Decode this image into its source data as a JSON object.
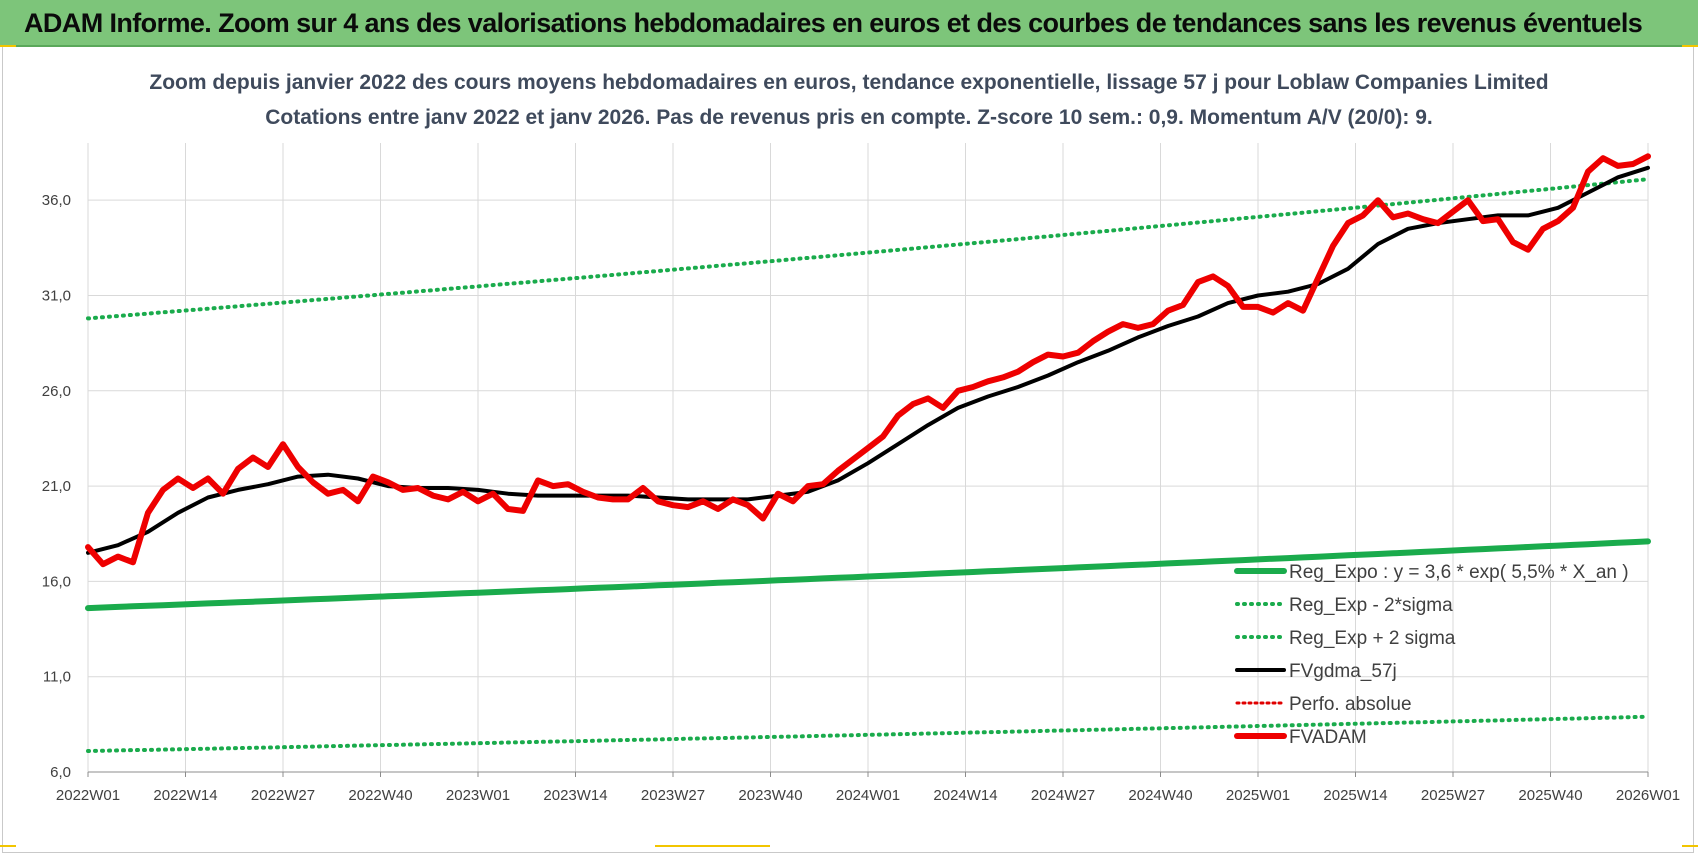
{
  "header": {
    "banner_title": "ADAM Informe. Zoom sur 4 ans des valorisations hebdomadaires en euros et des courbes de tendances sans les revenus éventuels"
  },
  "colors": {
    "banner_bg": "#7dc57a",
    "reg_expo": "#1aab4c",
    "sigma": "#1aab4c",
    "fvgdma": "#000000",
    "perfo": "#e00000",
    "fvadam": "#ee0000",
    "grid": "#d9d9d9",
    "subtitle": "#3f4a5c"
  },
  "chart_data": {
    "type": "line",
    "title_lines": [
      "Zoom depuis janvier 2022 des cours moyens hebdomadaires en euros, tendance exponentielle, lissage 57 j pour Loblaw Companies Limited",
      "Cotations entre janv 2022 et janv 2026. Pas de revenus pris en compte. Z-score 10 sem.: 0,9. Momentum A/V (20/0): 9."
    ],
    "xlabel": "",
    "ylabel": "",
    "ylim": [
      6,
      39
    ],
    "y_ticks": [
      "6,0",
      "11,0",
      "16,0",
      "21,0",
      "26,0",
      "31,0",
      "36,0"
    ],
    "y_tick_values": [
      6,
      11,
      16,
      21,
      26,
      31,
      36
    ],
    "x_range": [
      0,
      208
    ],
    "x_ticks": [
      "2022W01",
      "2022W14",
      "2022W27",
      "2022W40",
      "2023W01",
      "2023W14",
      "2023W27",
      "2023W40",
      "2024W01",
      "2024W14",
      "2024W27",
      "2024W40",
      "2025W01",
      "2025W14",
      "2025W27",
      "2025W40",
      "2026W01"
    ],
    "x_tick_weeks": [
      0,
      13,
      26,
      39,
      52,
      65,
      78,
      91,
      104,
      117,
      130,
      143,
      156,
      169,
      182,
      195,
      208
    ],
    "grid": true,
    "legend_position": "bottom-right",
    "legend": [
      {
        "label": "Reg_Expo : y = 3,6 * exp( 5,5% *  X_an )",
        "key": "reg_expo"
      },
      {
        "label": "Reg_Exp - 2*sigma",
        "key": "sigma_minus"
      },
      {
        "label": "Reg_Exp + 2 sigma",
        "key": "sigma_plus"
      },
      {
        "label": "FVgdma_57j",
        "key": "fvgdma"
      },
      {
        "label": "Perfo. absolue",
        "key": "perfo"
      },
      {
        "label": "FVADAM",
        "key": "fvadam"
      }
    ],
    "series": [
      {
        "name": "Reg_Expo",
        "style": "solid",
        "x": [
          0,
          208
        ],
        "values": [
          14.6,
          18.1
        ]
      },
      {
        "name": "Reg_Exp - 2*sigma",
        "style": "dotted",
        "x": [
          0,
          208
        ],
        "values": [
          7.1,
          8.9
        ]
      },
      {
        "name": "Reg_Exp + 2 sigma",
        "style": "dotted",
        "x": [
          0,
          208
        ],
        "values": [
          29.8,
          37.1
        ]
      },
      {
        "name": "FVgdma_57j",
        "style": "solid",
        "x": [
          0,
          4,
          8,
          12,
          16,
          20,
          24,
          28,
          32,
          36,
          40,
          44,
          48,
          52,
          56,
          60,
          64,
          68,
          72,
          76,
          80,
          84,
          88,
          92,
          96,
          100,
          104,
          108,
          112,
          116,
          120,
          124,
          128,
          132,
          136,
          140,
          144,
          148,
          152,
          156,
          160,
          164,
          168,
          172,
          176,
          180,
          184,
          188,
          192,
          196,
          200,
          204,
          208
        ],
        "values": [
          17.5,
          17.9,
          18.6,
          19.6,
          20.4,
          20.8,
          21.1,
          21.5,
          21.6,
          21.4,
          21.0,
          20.9,
          20.9,
          20.8,
          20.6,
          20.5,
          20.5,
          20.5,
          20.5,
          20.4,
          20.3,
          20.3,
          20.3,
          20.5,
          20.7,
          21.3,
          22.2,
          23.2,
          24.2,
          25.1,
          25.7,
          26.2,
          26.8,
          27.5,
          28.1,
          28.8,
          29.4,
          29.9,
          30.6,
          31.0,
          31.2,
          31.6,
          32.4,
          33.7,
          34.5,
          34.8,
          35.0,
          35.2,
          35.2,
          35.6,
          36.4,
          37.2,
          37.7
        ]
      },
      {
        "name": "Perfo. absolue",
        "style": "dotted",
        "x": [],
        "values": []
      },
      {
        "name": "FVADAM",
        "style": "solid",
        "x": [
          0,
          2,
          4,
          6,
          8,
          10,
          12,
          14,
          16,
          18,
          20,
          22,
          24,
          26,
          28,
          30,
          32,
          34,
          36,
          38,
          40,
          42,
          44,
          46,
          48,
          50,
          52,
          54,
          56,
          58,
          60,
          62,
          64,
          66,
          68,
          70,
          72,
          74,
          76,
          78,
          80,
          82,
          84,
          86,
          88,
          90,
          92,
          94,
          96,
          98,
          100,
          102,
          104,
          106,
          108,
          110,
          112,
          114,
          116,
          118,
          120,
          122,
          124,
          126,
          128,
          130,
          132,
          134,
          136,
          138,
          140,
          142,
          144,
          146,
          148,
          150,
          152,
          154,
          156,
          158,
          160,
          162,
          164,
          166,
          168,
          170,
          172,
          174,
          176,
          178,
          180,
          182,
          184,
          186,
          188,
          190,
          192,
          194,
          196,
          198,
          200,
          202,
          204,
          206,
          208
        ],
        "values": [
          17.8,
          16.9,
          17.3,
          17.0,
          19.6,
          20.8,
          21.4,
          20.9,
          21.4,
          20.6,
          21.9,
          22.5,
          22.0,
          23.2,
          22.0,
          21.2,
          20.6,
          20.8,
          20.2,
          21.5,
          21.2,
          20.8,
          20.9,
          20.5,
          20.3,
          20.7,
          20.2,
          20.6,
          19.8,
          19.7,
          21.3,
          21.0,
          21.1,
          20.7,
          20.4,
          20.3,
          20.3,
          20.9,
          20.2,
          20.0,
          19.9,
          20.2,
          19.8,
          20.3,
          20.0,
          19.3,
          20.6,
          20.2,
          21.0,
          21.1,
          21.8,
          22.4,
          23.0,
          23.6,
          24.7,
          25.3,
          25.6,
          25.1,
          26.0,
          26.2,
          26.5,
          26.7,
          27.0,
          27.5,
          27.9,
          27.8,
          28.0,
          28.6,
          29.1,
          29.5,
          29.3,
          29.5,
          30.2,
          30.5,
          31.7,
          32.0,
          31.5,
          30.4,
          30.4,
          30.1,
          30.6,
          30.2,
          31.9,
          33.6,
          34.8,
          35.2,
          36.0,
          35.1,
          35.3,
          35.0,
          34.8,
          35.4,
          36.0,
          34.9,
          35.0,
          33.8,
          33.4,
          34.5,
          34.9,
          35.6,
          37.5,
          38.2,
          37.8,
          37.9,
          38.3
        ]
      }
    ]
  }
}
